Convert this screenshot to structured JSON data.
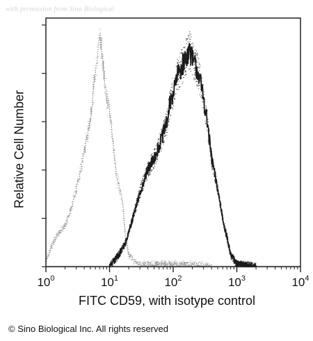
{
  "figure": {
    "watermark": "with permission from Sino Biological",
    "copyright": "© Sino Biological Inc. All rights reserved",
    "colors": {
      "isotype": "#8a8a8a",
      "cd59": "#1c1c1c",
      "axis": "#222222"
    }
  },
  "chart_data": {
    "type": "area",
    "xlabel": "FITC CD59, with isotype control",
    "ylabel": "Relative Cell Number",
    "xscale": "log",
    "xlim": [
      1,
      10000
    ],
    "ylim": [
      0,
      1
    ],
    "x_ticks": [
      {
        "value": 1,
        "base": "10",
        "exp": "0"
      },
      {
        "value": 10,
        "base": "10",
        "exp": "1"
      },
      {
        "value": 100,
        "base": "10",
        "exp": "2"
      },
      {
        "value": 1000,
        "base": "10",
        "exp": "3"
      },
      {
        "value": 10000,
        "base": "10",
        "exp": "4"
      }
    ],
    "y_ticks": [
      0,
      0.2,
      0.4,
      0.6,
      0.8,
      1.0
    ],
    "y_tick_labels_visible": false,
    "series": [
      {
        "id": "isotype",
        "style": "dotted",
        "color": "#8a8a8a",
        "x": [
          1,
          1.2,
          1.5,
          2,
          2.5,
          3,
          3.5,
          4,
          4.5,
          5,
          5.5,
          6,
          6.5,
          7,
          7.5,
          8,
          8.5,
          9,
          10,
          11,
          12,
          13,
          14,
          16,
          18,
          20,
          25,
          30,
          40,
          60,
          100,
          200,
          400
        ],
        "y": [
          0.02,
          0.08,
          0.13,
          0.17,
          0.24,
          0.32,
          0.4,
          0.47,
          0.55,
          0.62,
          0.72,
          0.8,
          0.88,
          0.95,
          0.9,
          0.82,
          0.76,
          0.7,
          0.64,
          0.55,
          0.45,
          0.36,
          0.34,
          0.26,
          0.12,
          0.05,
          0.02,
          0.01,
          0.01,
          0.01,
          0.01,
          0.01,
          0
        ]
      },
      {
        "id": "cd59",
        "style": "solid",
        "color": "#1c1c1c",
        "x": [
          10,
          14,
          18,
          22,
          28,
          35,
          40,
          50,
          60,
          70,
          80,
          90,
          100,
          120,
          150,
          180,
          200,
          250,
          300,
          350,
          400,
          500,
          600,
          700,
          800,
          1000,
          1500,
          2000
        ],
        "y": [
          0.0,
          0.05,
          0.1,
          0.18,
          0.28,
          0.36,
          0.4,
          0.45,
          0.5,
          0.55,
          0.6,
          0.68,
          0.72,
          0.8,
          0.85,
          0.9,
          0.86,
          0.8,
          0.7,
          0.58,
          0.45,
          0.32,
          0.2,
          0.12,
          0.05,
          0.01,
          0.005,
          0
        ]
      }
    ],
    "grid": false,
    "legend": "none"
  }
}
